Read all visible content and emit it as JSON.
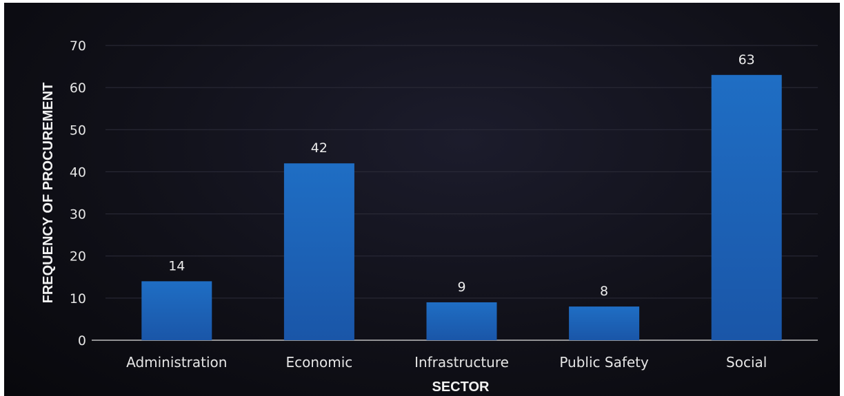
{
  "chart_data": {
    "type": "bar",
    "title": "",
    "xlabel": "SECTOR",
    "ylabel": "FREQUENCY OF PROCUREMENT",
    "categories": [
      "Administration",
      "Economic",
      "Infrastructure",
      "Public Safety",
      "Social"
    ],
    "values": [
      14,
      42,
      9,
      8,
      63
    ],
    "data_labels": [
      "14",
      "42",
      "9",
      "8",
      "63"
    ],
    "ylim": [
      0,
      70
    ],
    "yticks": [
      0,
      10,
      20,
      30,
      40,
      50,
      60,
      70
    ],
    "grid": true,
    "legend": "none",
    "colors": {
      "bar_top": "#1f6ec4",
      "bar_bottom": "#1a56a8",
      "background": "#101018",
      "text": "#e6e6e6"
    }
  }
}
